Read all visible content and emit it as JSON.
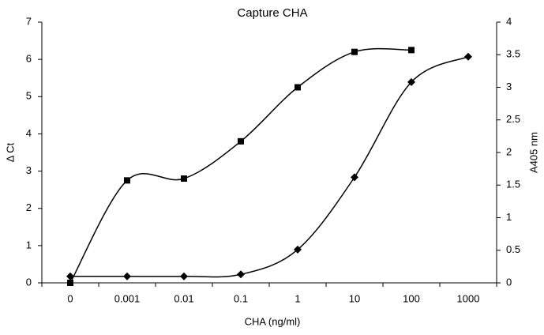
{
  "chart_data": {
    "type": "line",
    "title": "Capture CHA",
    "xlabel": "CHA (ng/ml)",
    "ylabel": "Δ Ct",
    "y2label": "A405 nm",
    "categories": [
      "0",
      "0.001",
      "0.01",
      "0.1",
      "1",
      "10",
      "100",
      "1000"
    ],
    "series": [
      {
        "color": "#000000",
        "marker": "square",
        "values": [
          0,
          2.75,
          2.8,
          3.8,
          5.25,
          6.2,
          6.25,
          null
        ]
      },
      {
        "color": "#000000",
        "marker": "diamond",
        "axis": "y2",
        "values": [
          0.1,
          0.1,
          0.1,
          0.13,
          0.51,
          1.62,
          3.08,
          3.47
        ]
      }
    ],
    "ylim": [
      0,
      7
    ],
    "yticks": [
      0,
      1,
      2,
      3,
      4,
      5,
      6,
      7
    ],
    "y2lim": [
      0,
      4
    ],
    "y2ticks": [
      0,
      0.5,
      1,
      1.5,
      2,
      2.5,
      3,
      3.5,
      4
    ],
    "grid": false
  }
}
